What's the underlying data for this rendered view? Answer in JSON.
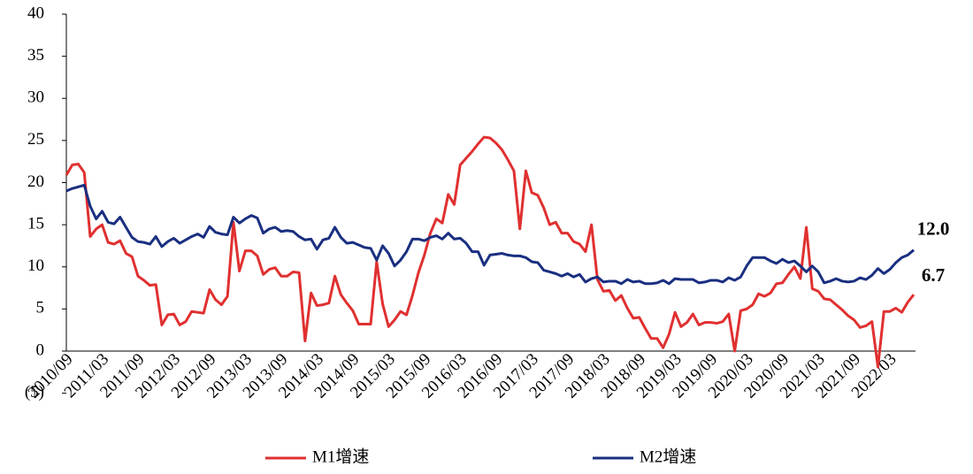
{
  "chart_data": {
    "type": "line",
    "categories": [
      "2010/09",
      null,
      null,
      null,
      null,
      null,
      "2011/03",
      null,
      null,
      null,
      null,
      null,
      "2011/09",
      null,
      null,
      null,
      null,
      null,
      "2012/03",
      null,
      null,
      null,
      null,
      null,
      "2012/09",
      null,
      null,
      null,
      null,
      null,
      "2013/03",
      null,
      null,
      null,
      null,
      null,
      "2013/09",
      null,
      null,
      null,
      null,
      null,
      "2014/03",
      null,
      null,
      null,
      null,
      null,
      "2014/09",
      null,
      null,
      null,
      null,
      null,
      "2015/03",
      null,
      null,
      null,
      null,
      null,
      "2015/09",
      null,
      null,
      null,
      null,
      null,
      "2016/03",
      null,
      null,
      null,
      null,
      null,
      "2016/09",
      null,
      null,
      null,
      null,
      null,
      "2017/03",
      null,
      null,
      null,
      null,
      null,
      "2017/09",
      null,
      null,
      null,
      null,
      null,
      "2018/03",
      null,
      null,
      null,
      null,
      null,
      "2018/09",
      null,
      null,
      null,
      null,
      null,
      "2019/03",
      null,
      null,
      null,
      null,
      null,
      "2019/09",
      null,
      null,
      null,
      null,
      null,
      "2020/03",
      null,
      null,
      null,
      null,
      null,
      "2020/09",
      null,
      null,
      null,
      null,
      null,
      "2021/03",
      null,
      null,
      null,
      null,
      null,
      "2021/09",
      null,
      null,
      null,
      null,
      null,
      "2022/03",
      null,
      null,
      null,
      null
    ],
    "series": [
      {
        "name": "M1增速",
        "color": "#e03030",
        "values": [
          20.9,
          22.1,
          22.2,
          21.2,
          13.6,
          14.5,
          15.0,
          12.9,
          12.7,
          13.1,
          11.6,
          11.2,
          8.9,
          8.4,
          7.8,
          7.9,
          3.1,
          4.3,
          4.4,
          3.1,
          3.5,
          4.7,
          4.6,
          4.5,
          7.3,
          6.1,
          5.5,
          6.5,
          15.3,
          9.5,
          11.9,
          11.9,
          11.3,
          9.1,
          9.7,
          9.9,
          8.9,
          8.9,
          9.4,
          9.3,
          1.2,
          6.9,
          5.4,
          5.5,
          5.7,
          8.9,
          6.7,
          5.7,
          4.8,
          3.2,
          3.2,
          3.2,
          10.6,
          5.6,
          2.9,
          3.7,
          4.7,
          4.3,
          6.6,
          9.3,
          11.4,
          14.0,
          15.7,
          15.2,
          18.6,
          17.4,
          22.1,
          22.9,
          23.7,
          24.6,
          25.4,
          25.3,
          24.7,
          23.9,
          22.7,
          21.4,
          14.5,
          21.4,
          18.8,
          18.5,
          17.0,
          15.0,
          15.3,
          14.0,
          14.0,
          13.0,
          12.7,
          11.8,
          15.0,
          8.5,
          7.1,
          7.2,
          6.0,
          6.6,
          5.1,
          3.9,
          4.0,
          2.7,
          1.5,
          1.5,
          0.4,
          2.0,
          4.6,
          2.9,
          3.4,
          4.4,
          3.1,
          3.4,
          3.4,
          3.3,
          3.5,
          4.4,
          0.0,
          4.8,
          5.0,
          5.5,
          6.8,
          6.5,
          6.9,
          8.0,
          8.1,
          9.1,
          10.0,
          8.6,
          14.7,
          7.4,
          7.1,
          6.2,
          6.1,
          5.5,
          4.9,
          4.2,
          3.7,
          2.8,
          3.0,
          3.5,
          -1.9,
          4.7,
          4.7,
          5.1,
          4.6,
          5.8,
          6.7
        ],
        "value_labels": [
          null,
          null,
          null,
          null,
          null,
          null,
          null,
          null,
          null,
          null,
          null,
          null,
          null,
          null,
          null,
          null,
          null,
          null,
          null,
          null,
          null,
          null,
          null,
          null,
          null,
          null,
          null,
          null,
          null,
          null,
          null,
          null,
          null,
          null,
          null,
          null,
          null,
          null,
          null,
          null,
          null,
          null,
          null,
          null,
          null,
          null,
          null,
          null,
          null,
          null,
          null,
          null,
          null,
          null,
          null,
          null,
          null,
          null,
          null,
          null,
          null,
          null,
          null,
          null,
          null,
          null,
          null,
          null,
          null,
          null,
          null,
          null,
          null,
          null,
          null,
          null,
          null,
          null,
          null,
          null,
          null,
          null,
          null,
          null,
          null,
          null,
          null,
          null,
          null,
          null,
          null,
          null,
          null,
          null,
          null,
          null,
          null,
          null,
          null,
          null,
          null,
          null,
          null,
          null,
          null,
          null,
          null,
          null,
          null,
          null,
          null,
          null,
          null,
          null,
          null,
          null,
          null,
          null,
          null,
          null,
          null,
          null,
          null,
          null,
          null,
          null,
          null,
          null,
          null,
          null,
          null,
          null,
          null,
          null,
          null,
          null,
          null,
          null,
          null,
          null,
          null,
          null,
          "6.7"
        ]
      },
      {
        "name": "M2增速",
        "color": "#1a2f80",
        "values": [
          19.0,
          19.3,
          19.5,
          19.7,
          17.2,
          15.7,
          16.6,
          15.3,
          15.1,
          15.9,
          14.7,
          13.5,
          13.0,
          12.9,
          12.7,
          13.6,
          12.4,
          13.0,
          13.4,
          12.8,
          13.2,
          13.6,
          13.9,
          13.5,
          14.8,
          14.1,
          13.9,
          13.8,
          15.9,
          15.2,
          15.7,
          16.1,
          15.8,
          14.0,
          14.5,
          14.7,
          14.2,
          14.3,
          14.2,
          13.6,
          13.2,
          13.3,
          12.1,
          13.2,
          13.4,
          14.7,
          13.5,
          12.8,
          12.9,
          12.6,
          12.3,
          12.2,
          10.8,
          12.5,
          11.6,
          10.1,
          10.8,
          11.8,
          13.3,
          13.3,
          13.1,
          13.5,
          13.7,
          13.3,
          14.0,
          13.3,
          13.4,
          12.8,
          11.8,
          11.8,
          10.2,
          11.4,
          11.5,
          11.6,
          11.4,
          11.3,
          11.3,
          11.1,
          10.6,
          10.5,
          9.6,
          9.4,
          9.2,
          8.9,
          9.2,
          8.8,
          9.1,
          8.2,
          8.6,
          8.8,
          8.2,
          8.3,
          8.3,
          8.0,
          8.5,
          8.2,
          8.3,
          8.0,
          8.0,
          8.1,
          8.4,
          8.0,
          8.6,
          8.5,
          8.5,
          8.5,
          8.1,
          8.2,
          8.4,
          8.4,
          8.2,
          8.7,
          8.4,
          8.8,
          10.1,
          11.1,
          11.1,
          11.1,
          10.7,
          10.4,
          10.9,
          10.5,
          10.7,
          10.1,
          9.4,
          10.1,
          9.4,
          8.1,
          8.3,
          8.6,
          8.3,
          8.2,
          8.3,
          8.7,
          8.5,
          9.0,
          9.8,
          9.2,
          9.7,
          10.5,
          11.1,
          11.4,
          12.0
        ],
        "value_labels": [
          null,
          null,
          null,
          null,
          null,
          null,
          null,
          null,
          null,
          null,
          null,
          null,
          null,
          null,
          null,
          null,
          null,
          null,
          null,
          null,
          null,
          null,
          null,
          null,
          null,
          null,
          null,
          null,
          null,
          null,
          null,
          null,
          null,
          null,
          null,
          null,
          null,
          null,
          null,
          null,
          null,
          null,
          null,
          null,
          null,
          null,
          null,
          null,
          null,
          null,
          null,
          null,
          null,
          null,
          null,
          null,
          null,
          null,
          null,
          null,
          null,
          null,
          null,
          null,
          null,
          null,
          null,
          null,
          null,
          null,
          null,
          null,
          null,
          null,
          null,
          null,
          null,
          null,
          null,
          null,
          null,
          null,
          null,
          null,
          null,
          null,
          null,
          null,
          null,
          null,
          null,
          null,
          null,
          null,
          null,
          null,
          null,
          null,
          null,
          null,
          null,
          null,
          null,
          null,
          null,
          null,
          null,
          null,
          null,
          null,
          null,
          null,
          null,
          null,
          null,
          null,
          null,
          null,
          null,
          null,
          null,
          null,
          null,
          null,
          null,
          null,
          null,
          null,
          null,
          null,
          null,
          null,
          null,
          null,
          null,
          null,
          null,
          null,
          null,
          null,
          null,
          null,
          "12.0"
        ]
      }
    ],
    "ylim": [
      -5,
      40
    ],
    "yticks": [
      {
        "value": -5,
        "label": "(5)"
      },
      0,
      5,
      10,
      15,
      20,
      25,
      30,
      35,
      40
    ],
    "grid": false,
    "legend": "bottom"
  }
}
